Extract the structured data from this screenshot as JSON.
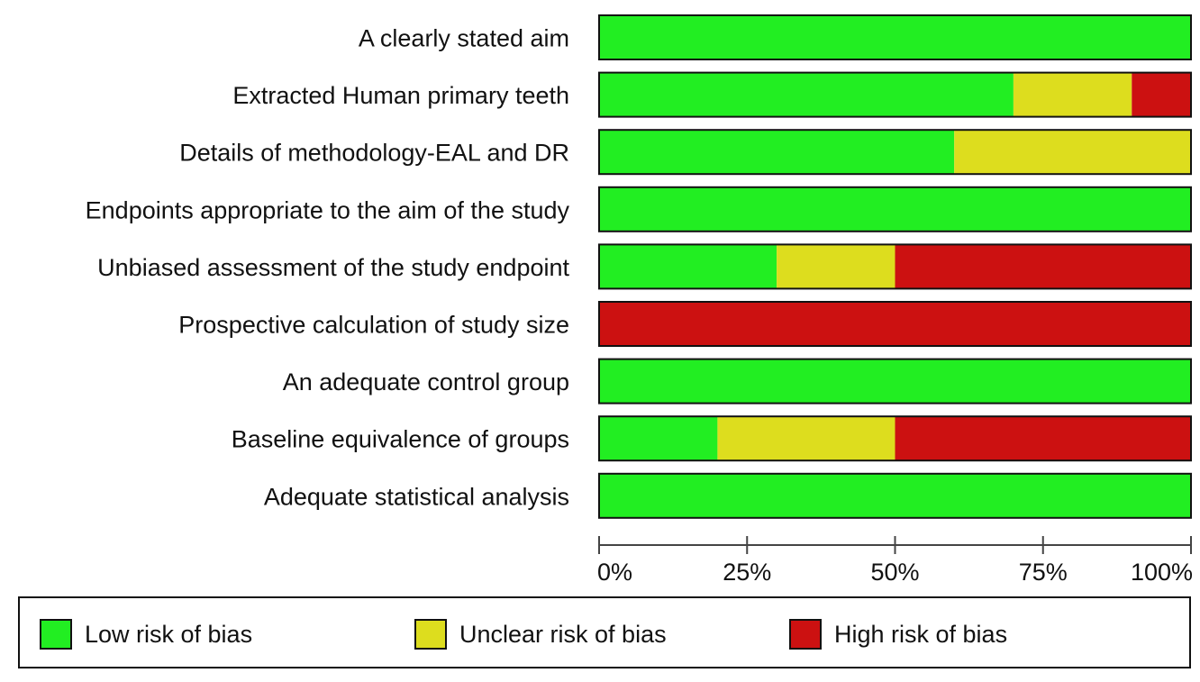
{
  "chart_data": {
    "type": "bar",
    "orientation": "horizontal",
    "stacked": true,
    "normalized": true,
    "categories": [
      "A clearly stated aim",
      "Extracted Human primary teeth",
      "Details of methodology-EAL and DR",
      "Endpoints appropriate to the aim of the study",
      "Unbiased assessment of the study endpoint",
      "Prospective calculation of study size",
      "An adequate control group",
      "Baseline equivalence of groups",
      "Adequate statistical analysis"
    ],
    "series": [
      {
        "name": "Low risk of bias",
        "color": "#22ee22",
        "values": [
          100,
          70,
          60,
          100,
          30,
          0,
          100,
          20,
          100
        ]
      },
      {
        "name": "Unclear risk of bias",
        "color": "#dddd1e",
        "values": [
          0,
          20,
          40,
          0,
          20,
          0,
          0,
          30,
          0
        ]
      },
      {
        "name": "High risk of bias",
        "color": "#cc1111",
        "values": [
          0,
          10,
          0,
          0,
          50,
          100,
          0,
          50,
          0
        ]
      }
    ],
    "xlim": [
      0,
      100
    ],
    "xticks": [
      "0%",
      "25%",
      "50%",
      "75%",
      "100%"
    ],
    "legend_position": "bottom",
    "grid": false
  }
}
